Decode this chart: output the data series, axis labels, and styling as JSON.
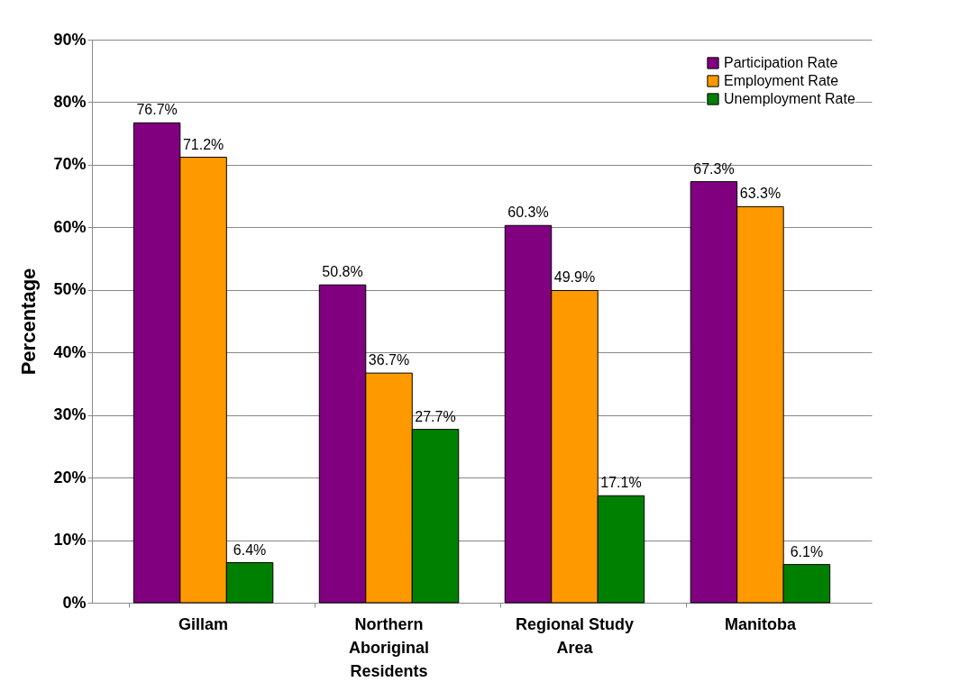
{
  "chart_data": {
    "type": "bar",
    "ylabel": "Percentage",
    "categories": [
      "Gillam",
      "Northern Aboriginal Residents",
      "Regional Study Area",
      "Manitoba"
    ],
    "series": [
      {
        "name": "Participation Rate",
        "color": "#800080",
        "values": [
          76.7,
          50.8,
          60.3,
          67.3
        ],
        "value_labels": [
          "76.7%",
          "50.8%",
          "60.3%",
          "67.3%"
        ]
      },
      {
        "name": "Employment Rate",
        "color": "#ff9900",
        "values": [
          71.2,
          36.7,
          49.9,
          63.3
        ],
        "value_labels": [
          "71.2%",
          "36.7%",
          "49.9%",
          "63.3%"
        ]
      },
      {
        "name": "Unemployment Rate",
        "color": "#008000",
        "values": [
          6.4,
          27.7,
          17.1,
          6.1
        ],
        "value_labels": [
          "6.4%",
          "27.7%",
          "17.1%",
          "6.1%"
        ]
      }
    ],
    "ylim": [
      0,
      90
    ],
    "yticks": [
      {
        "value": 0,
        "label": "0%"
      },
      {
        "value": 10,
        "label": "10%"
      },
      {
        "value": 20,
        "label": "20%"
      },
      {
        "value": 30,
        "label": "30%"
      },
      {
        "value": 40,
        "label": "40%"
      },
      {
        "value": 50,
        "label": "50%"
      },
      {
        "value": 60,
        "label": "60%"
      },
      {
        "value": 70,
        "label": "70%"
      },
      {
        "value": 80,
        "label": "80%"
      },
      {
        "value": 90,
        "label": "90%"
      }
    ],
    "grid": "y",
    "legend": "top right"
  }
}
